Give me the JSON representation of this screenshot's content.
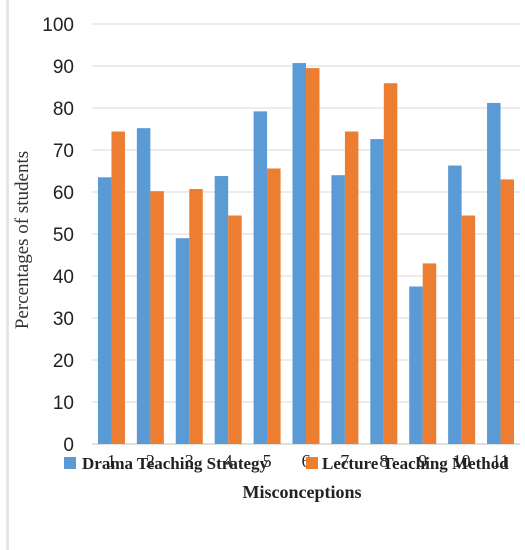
{
  "chart_data": {
    "type": "bar",
    "title": "",
    "xlabel": "Misconceptions",
    "ylabel": "Percentages of students",
    "ylim": [
      0,
      100
    ],
    "yticks": [
      0,
      10,
      20,
      30,
      40,
      50,
      60,
      70,
      80,
      90,
      100
    ],
    "categories": [
      "1",
      "2",
      "3",
      "4",
      "5",
      "6",
      "7",
      "8",
      "9",
      "10",
      "11"
    ],
    "series": [
      {
        "name": "Drama Teaching Strategy",
        "color": "#5b9bd5",
        "values": [
          63.5,
          75.2,
          49.0,
          63.8,
          79.2,
          90.7,
          64.0,
          72.6,
          37.5,
          66.3,
          81.2
        ]
      },
      {
        "name": "Lecture Teaching Method",
        "color": "#ed7d31",
        "values": [
          74.4,
          60.2,
          60.7,
          54.4,
          65.6,
          89.5,
          74.4,
          85.9,
          43.0,
          54.4,
          63.0
        ]
      }
    ],
    "grid": true,
    "legend_position": "bottom"
  }
}
